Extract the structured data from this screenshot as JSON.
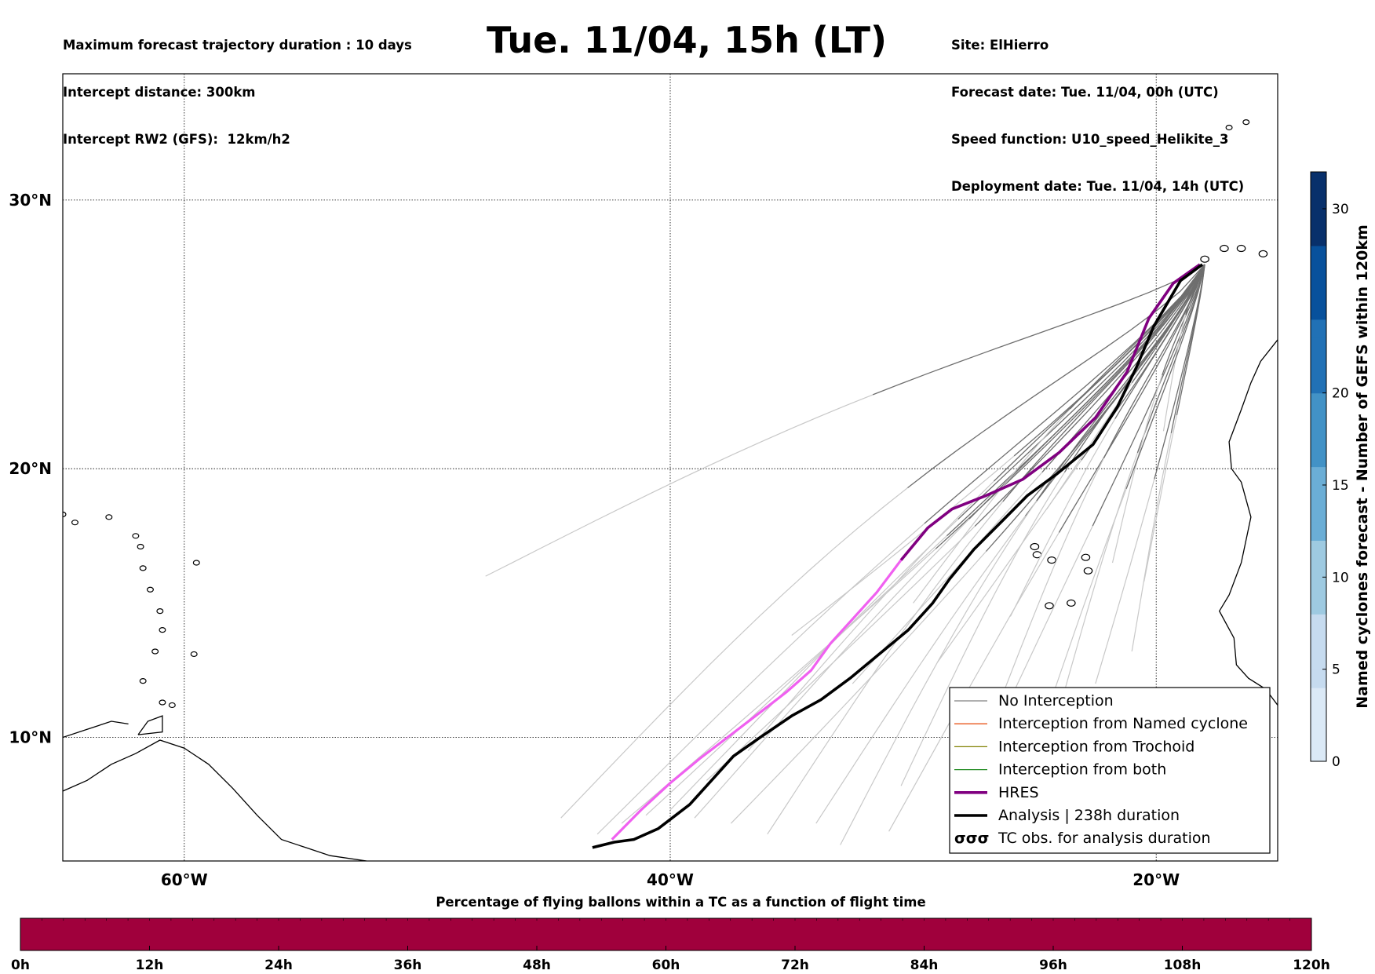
{
  "header": {
    "left_lines": [
      "Maximum forecast trajectory duration : 10 days",
      "Intercept distance: 300km",
      "Intercept RW2 (GFS):  12km/h2"
    ],
    "title": "Tue. 11/04, 15h (LT)",
    "right_lines": [
      "Site: ElHierro",
      "Forecast date: Tue. 11/04, 00h (UTC)",
      "Speed function: U10_speed_Helikite_3",
      "Deployment date: Tue. 11/04, 14h (UTC)"
    ]
  },
  "map": {
    "lon_range": [
      -65,
      -15
    ],
    "lat_range": [
      5.4,
      34.7
    ],
    "lat_ticks": [
      {
        "value": 30,
        "label": "30°N"
      },
      {
        "value": 20,
        "label": "20°N"
      },
      {
        "value": 10,
        "label": "10°N"
      }
    ],
    "lon_ticks": [
      {
        "value": -60,
        "label": "60°W"
      },
      {
        "value": -40,
        "label": "40°W"
      },
      {
        "value": -20,
        "label": "20°W"
      }
    ],
    "site": {
      "name": "ElHierro",
      "lon": -18.0,
      "lat": 27.7
    }
  },
  "legend": {
    "items": [
      {
        "label": "No Interception",
        "color": "#808080",
        "style": "thin"
      },
      {
        "label": "Interception from Named cyclone",
        "color": "#e8571c",
        "style": "thin"
      },
      {
        "label": "Interception from Trochoid",
        "color": "#808000",
        "style": "thin"
      },
      {
        "label": "Interception from both",
        "color": "#228b22",
        "style": "thin"
      },
      {
        "label": "HRES",
        "color": "#800080",
        "style": "thick"
      },
      {
        "label": "Analysis | 238h duration",
        "color": "#000000",
        "style": "thick"
      },
      {
        "label": "TC obs. for analysis duration",
        "color": "#000000",
        "style": "symbol",
        "symbol": "σσσ"
      }
    ]
  },
  "colorbar_right": {
    "label": "Named cyclones forecast - Number of GEFS within 120km",
    "min": 0,
    "max": 32,
    "ticks": [
      0,
      5,
      10,
      15,
      20,
      30
    ],
    "colors": [
      "#dbe9f6",
      "#c6dbef",
      "#9ecae1",
      "#6baed6",
      "#4292c6",
      "#2171b5",
      "#08519c",
      "#08306b"
    ]
  },
  "colorbar_bottom": {
    "title": "Percentage of flying ballons within a TC as a function of flight time",
    "fill_color": "#a0003c",
    "ticks": [
      "0h",
      "12h",
      "24h",
      "36h",
      "48h",
      "60h",
      "72h",
      "84h",
      "96h",
      "108h",
      "120h"
    ]
  },
  "trajectories": {
    "hres": {
      "color_late": "#800080",
      "color_early": "#f060f0",
      "points": [
        [
          -18.2,
          27.6
        ],
        [
          -19.3,
          26.9
        ],
        [
          -20.3,
          25.6
        ],
        [
          -21.2,
          23.6
        ],
        [
          -22.5,
          21.9
        ],
        [
          -24.0,
          20.6
        ],
        [
          -25.5,
          19.6
        ],
        [
          -27.0,
          19.0
        ],
        [
          -28.4,
          18.5
        ],
        [
          -29.4,
          17.8
        ],
        [
          -30.5,
          16.6
        ],
        [
          -31.5,
          15.4
        ],
        [
          -32.5,
          14.4
        ],
        [
          -33.4,
          13.5
        ],
        [
          -34.2,
          12.5
        ],
        [
          -35.2,
          11.7
        ],
        [
          -36.2,
          11.0
        ],
        [
          -37.5,
          10.1
        ],
        [
          -38.8,
          9.2
        ],
        [
          -40.0,
          8.3
        ],
        [
          -41.2,
          7.3
        ],
        [
          -42.4,
          6.2
        ]
      ],
      "late_count": 11
    },
    "analysis": {
      "color": "#000000",
      "points": [
        [
          -18.1,
          27.6
        ],
        [
          -19.0,
          27.0
        ],
        [
          -20.1,
          25.3
        ],
        [
          -20.8,
          23.8
        ],
        [
          -21.6,
          22.3
        ],
        [
          -22.6,
          20.9
        ],
        [
          -24.1,
          19.8
        ],
        [
          -25.3,
          19.0
        ],
        [
          -26.4,
          18.0
        ],
        [
          -27.5,
          17.0
        ],
        [
          -28.5,
          15.9
        ],
        [
          -29.2,
          15.0
        ],
        [
          -30.2,
          14.0
        ],
        [
          -31.4,
          13.1
        ],
        [
          -32.6,
          12.2
        ],
        [
          -33.8,
          11.4
        ],
        [
          -35.0,
          10.8
        ],
        [
          -36.3,
          10.0
        ],
        [
          -37.4,
          9.3
        ],
        [
          -38.2,
          8.5
        ],
        [
          -39.2,
          7.5
        ],
        [
          -40.5,
          6.6
        ],
        [
          -41.5,
          6.2
        ],
        [
          -42.3,
          6.1
        ],
        [
          -43.2,
          5.9
        ]
      ]
    },
    "ensemble": {
      "color_late": "#6e6e6e",
      "color_early": "#c8c8c8",
      "count": 30,
      "start": [
        -18.0,
        27.6
      ],
      "endpoints": [
        [
          -47.6,
          16.0
        ],
        [
          -43.0,
          6.4
        ],
        [
          -42.0,
          6.8
        ],
        [
          -41.0,
          7.1
        ],
        [
          -40.0,
          7.3
        ],
        [
          -39.0,
          7.0
        ],
        [
          -37.5,
          6.8
        ],
        [
          -36.0,
          6.4
        ],
        [
          -34.0,
          6.8
        ],
        [
          -31.0,
          6.5
        ],
        [
          -28.0,
          7.6
        ],
        [
          -27.0,
          10.0
        ],
        [
          -24.0,
          11.0
        ],
        [
          -22.5,
          12.0
        ],
        [
          -21.0,
          13.2
        ],
        [
          -20.5,
          15.8
        ],
        [
          -21.8,
          16.5
        ],
        [
          -24.5,
          18.5
        ],
        [
          -19.7,
          21.4
        ],
        [
          -30.0,
          15.0
        ],
        [
          -32.5,
          12.0
        ],
        [
          -35.0,
          13.8
        ],
        [
          -30.5,
          8.2
        ],
        [
          -33.0,
          6.0
        ],
        [
          -38.5,
          8.4
        ],
        [
          -26.0,
          14.5
        ],
        [
          -44.5,
          7.0
        ],
        [
          -29.0,
          12.8
        ],
        [
          -25.0,
          9.6
        ],
        [
          -36.8,
          9.5
        ]
      ]
    },
    "breakpoints": {
      "grey_switch_fraction": 0.45
    }
  },
  "coast": {
    "americas": [
      [
        -65,
        8.0
      ],
      [
        -64.0,
        8.4
      ],
      [
        -63.0,
        9.0
      ],
      [
        -62.0,
        9.4
      ],
      [
        -61.0,
        9.9
      ],
      [
        -60.0,
        9.6
      ],
      [
        -59.0,
        9.0
      ],
      [
        -58.0,
        8.1
      ],
      [
        -57.0,
        7.1
      ],
      [
        -56.0,
        6.2
      ],
      [
        -55.0,
        5.9
      ],
      [
        -54.0,
        5.6
      ],
      [
        -52.5,
        5.4
      ]
    ],
    "trinidad": [
      [
        -61.9,
        10.1
      ],
      [
        -61.5,
        10.6
      ],
      [
        -60.9,
        10.8
      ],
      [
        -60.9,
        10.2
      ],
      [
        -61.9,
        10.1
      ]
    ],
    "venezuela_coast": [
      [
        -65,
        10.0
      ],
      [
        -64.0,
        10.3
      ],
      [
        -63.0,
        10.6
      ],
      [
        -62.3,
        10.5
      ]
    ],
    "islands": [
      [
        -62.0,
        17.5
      ],
      [
        -61.8,
        17.1
      ],
      [
        -61.7,
        16.3
      ],
      [
        -61.4,
        15.5
      ],
      [
        -61.0,
        14.7
      ],
      [
        -61.2,
        13.2
      ],
      [
        -60.9,
        14.0
      ],
      [
        -59.6,
        13.1
      ],
      [
        -61.7,
        12.1
      ],
      [
        -63.1,
        18.2
      ],
      [
        -64.5,
        18.0
      ],
      [
        -65.0,
        18.3
      ],
      [
        -60.5,
        11.2
      ],
      [
        -60.9,
        11.3
      ],
      [
        -59.5,
        16.5
      ]
    ],
    "africa": [
      [
        -15,
        24.8
      ],
      [
        -15.7,
        24.0
      ],
      [
        -16.1,
        23.2
      ],
      [
        -16.5,
        22.2
      ],
      [
        -17.0,
        21.0
      ],
      [
        -16.9,
        20.0
      ],
      [
        -16.5,
        19.5
      ],
      [
        -16.1,
        18.2
      ],
      [
        -16.5,
        16.5
      ],
      [
        -17.0,
        15.3
      ],
      [
        -17.4,
        14.7
      ],
      [
        -16.8,
        13.7
      ],
      [
        -16.7,
        12.7
      ],
      [
        -16.2,
        12.2
      ],
      [
        -15.5,
        11.8
      ],
      [
        -15.0,
        11.2
      ]
    ],
    "canaries": [
      [
        -18.0,
        27.8
      ],
      [
        -17.2,
        28.2
      ],
      [
        -16.5,
        28.2
      ],
      [
        -15.6,
        28.0
      ],
      [
        -14.0,
        28.6
      ],
      [
        -13.5,
        29.1
      ]
    ],
    "cape_verde": [
      [
        -24.9,
        16.8
      ],
      [
        -24.3,
        16.6
      ],
      [
        -22.9,
        16.7
      ],
      [
        -22.8,
        16.2
      ],
      [
        -23.5,
        15.0
      ],
      [
        -24.4,
        14.9
      ],
      [
        -25.0,
        17.1
      ]
    ],
    "madeira": [
      [
        -17.0,
        32.7
      ],
      [
        -16.3,
        32.9
      ]
    ]
  }
}
